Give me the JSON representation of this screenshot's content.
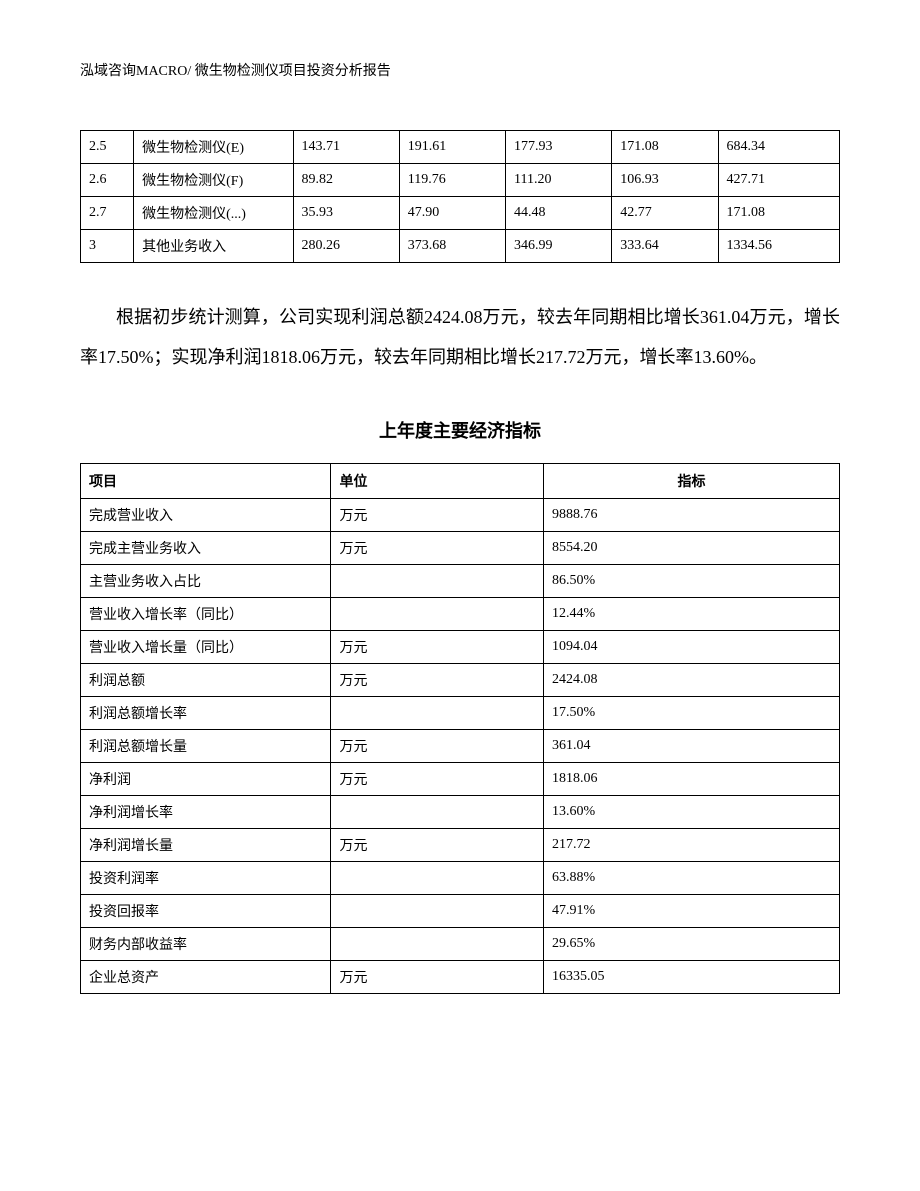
{
  "header": {
    "text": "泓域咨询MACRO/    微生物检测仪项目投资分析报告"
  },
  "table1": {
    "type": "table",
    "col_widths_pct": [
      7,
      21,
      14,
      14,
      14,
      14,
      16
    ],
    "border_color": "#000000",
    "background_color": "#ffffff",
    "font_size_pt": 10.5,
    "rows": [
      [
        "2.5",
        "微生物检测仪(E)",
        "143.71",
        "191.61",
        "177.93",
        "171.08",
        "684.34"
      ],
      [
        "2.6",
        "微生物检测仪(F)",
        "89.82",
        "119.76",
        "111.20",
        "106.93",
        "427.71"
      ],
      [
        "2.7",
        "微生物检测仪(...)",
        "35.93",
        "47.90",
        "44.48",
        "42.77",
        "171.08"
      ],
      [
        "3",
        "其他业务收入",
        "280.26",
        "373.68",
        "346.99",
        "333.64",
        "1334.56"
      ]
    ]
  },
  "paragraph": {
    "text": "根据初步统计测算，公司实现利润总额2424.08万元，较去年同期相比增长361.04万元，增长率17.50%；实现净利润1818.06万元，较去年同期相比增长217.72万元，增长率13.60%。",
    "font_size_pt": 14,
    "line_height": 2.2,
    "text_indent_em": 2
  },
  "section_title": {
    "text": "上年度主要经济指标",
    "font_size_pt": 14,
    "font_weight": "bold"
  },
  "table2": {
    "type": "table",
    "col_widths_pct": [
      33,
      28,
      39
    ],
    "border_color": "#000000",
    "background_color": "#ffffff",
    "font_size_pt": 10.5,
    "header_font_weight": "bold",
    "columns": [
      "项目",
      "单位",
      "指标"
    ],
    "column_align": [
      "left",
      "left",
      "center"
    ],
    "rows": [
      [
        "完成营业收入",
        "万元",
        "9888.76"
      ],
      [
        "完成主营业务收入",
        "万元",
        "8554.20"
      ],
      [
        "主营业务收入占比",
        "",
        "86.50%"
      ],
      [
        "营业收入增长率（同比）",
        "",
        "12.44%"
      ],
      [
        "营业收入增长量（同比）",
        "万元",
        "1094.04"
      ],
      [
        "利润总额",
        "万元",
        "2424.08"
      ],
      [
        "利润总额增长率",
        "",
        "17.50%"
      ],
      [
        "利润总额增长量",
        "万元",
        "361.04"
      ],
      [
        "净利润",
        "万元",
        "1818.06"
      ],
      [
        "净利润增长率",
        "",
        "13.60%"
      ],
      [
        "净利润增长量",
        "万元",
        "217.72"
      ],
      [
        "投资利润率",
        "",
        "63.88%"
      ],
      [
        "投资回报率",
        "",
        "47.91%"
      ],
      [
        "财务内部收益率",
        "",
        "29.65%"
      ],
      [
        "企业总资产",
        "万元",
        "16335.05"
      ]
    ]
  }
}
